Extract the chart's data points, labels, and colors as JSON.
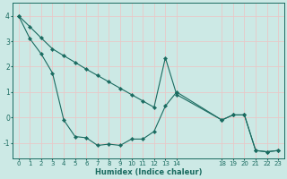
{
  "xlabel": "Humidex (Indice chaleur)",
  "background_color": "#cce9e5",
  "line_color": "#1a6b60",
  "grid_color": "#b0d8d4",
  "xlim": [
    -0.5,
    23.5
  ],
  "ylim": [
    -1.6,
    4.5
  ],
  "yticks": [
    -1,
    0,
    1,
    2,
    3,
    4
  ],
  "xticks": [
    0,
    1,
    2,
    3,
    4,
    5,
    6,
    7,
    8,
    9,
    10,
    11,
    12,
    13,
    14,
    18,
    19,
    20,
    21,
    22,
    23
  ],
  "series1_x": [
    0,
    1,
    2,
    3,
    4,
    5,
    6,
    7,
    8,
    9,
    10,
    11,
    12,
    13,
    14,
    18,
    19,
    20,
    21,
    22,
    23
  ],
  "series1_y": [
    4.0,
    3.1,
    2.5,
    1.75,
    -0.1,
    -0.75,
    -0.8,
    -1.1,
    -1.05,
    -1.1,
    -0.85,
    -0.85,
    -0.55,
    0.45,
    1.0,
    -0.1,
    0.1,
    0.1,
    -1.3,
    -1.35,
    -1.3
  ],
  "series2_x": [
    0,
    1,
    2,
    3,
    4,
    5,
    6,
    7,
    8,
    9,
    10,
    11,
    12,
    13,
    14,
    18,
    19,
    20,
    21,
    22,
    23
  ],
  "series2_y": [
    4.0,
    3.57,
    3.13,
    2.7,
    2.43,
    2.17,
    1.9,
    1.65,
    1.4,
    1.15,
    0.9,
    0.65,
    0.4,
    2.35,
    0.9,
    -0.1,
    0.1,
    0.1,
    -1.3,
    -1.35,
    -1.3
  ]
}
